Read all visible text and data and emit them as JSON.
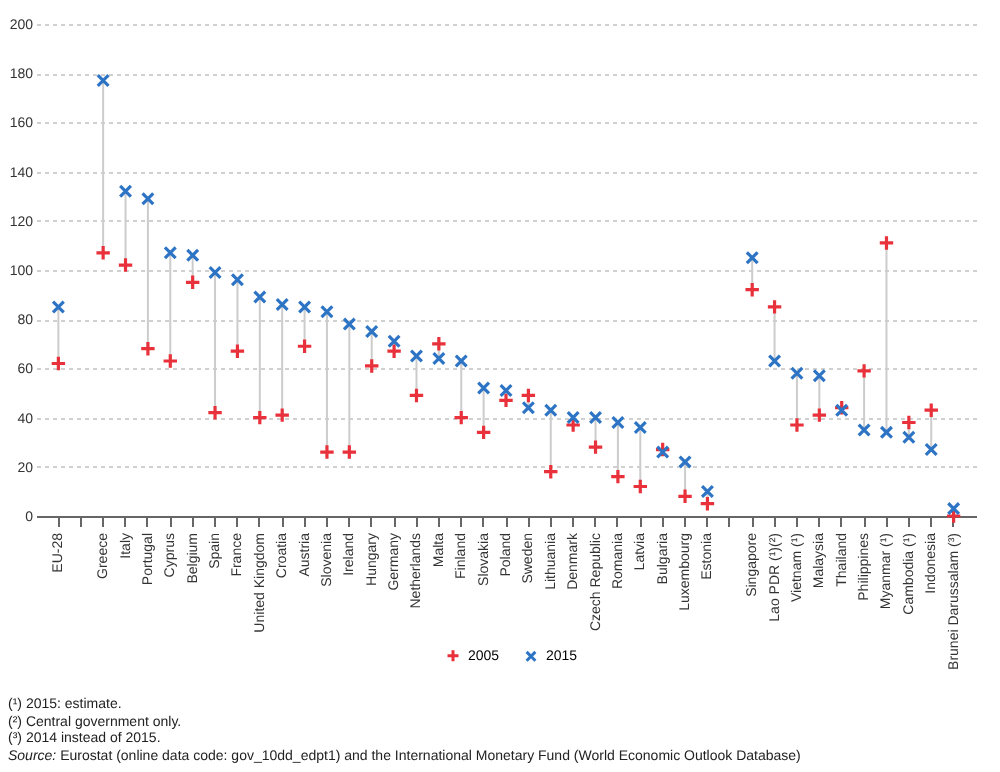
{
  "chart_data": {
    "type": "scatter",
    "categories": [
      "EU-28",
      null,
      "Greece",
      "Italy",
      "Portugal",
      "Cyprus",
      "Belgium",
      "Spain",
      "France",
      "United Kingdom",
      "Croatia",
      "Austria",
      "Slovenia",
      "Ireland",
      "Hungary",
      "Germany",
      "Netherlands",
      "Malta",
      "Finland",
      "Slovakia",
      "Poland",
      "Sweden",
      "Lithuania",
      "Denmark",
      "Czech Republic",
      "Romania",
      "Latvia",
      "Bulgaria",
      "Luxembourg",
      "Estonia",
      null,
      "Singapore",
      "Lao PDR (¹)(²)",
      "Vietnam (¹)",
      "Malaysia",
      "Thailand",
      "Philippines",
      "Myanmar (¹)",
      "Cambodia (¹)",
      "Indonesia",
      "Brunei Darussalam (³)"
    ],
    "series": [
      {
        "name": "2005",
        "color": "#e8313a",
        "marker": "cross",
        "values": [
          62,
          null,
          107,
          102,
          68,
          63,
          95,
          42,
          67,
          40,
          41,
          69,
          26,
          26,
          61,
          67,
          49,
          70,
          40,
          34,
          47,
          49,
          18,
          37,
          28,
          16,
          12,
          27,
          8,
          5,
          null,
          92,
          85,
          37,
          41,
          44,
          59,
          111,
          38,
          43,
          0
        ]
      },
      {
        "name": "2015",
        "color": "#2e74c5",
        "marker": "x",
        "values": [
          85,
          null,
          177,
          132,
          129,
          107,
          106,
          99,
          96,
          89,
          86,
          85,
          83,
          78,
          75,
          71,
          65,
          64,
          63,
          52,
          51,
          44,
          43,
          40,
          40,
          38,
          36,
          26,
          22,
          10,
          null,
          105,
          63,
          58,
          57,
          43,
          35,
          34,
          32,
          27,
          3
        ]
      }
    ],
    "ylim": [
      0,
      200
    ],
    "yticks": [
      0,
      20,
      40,
      60,
      80,
      100,
      120,
      140,
      160,
      180,
      200
    ],
    "grid": "y",
    "legend": "bottom",
    "annotations": [
      "(¹) 2015: estimate.",
      "(²) Central government only.",
      "(³) 2014 instead of 2015.",
      "Source: Eurostat (online data code: gov_10dd_edpt1) and the International Monetary Fund (World Economic Outlook Database)"
    ]
  }
}
